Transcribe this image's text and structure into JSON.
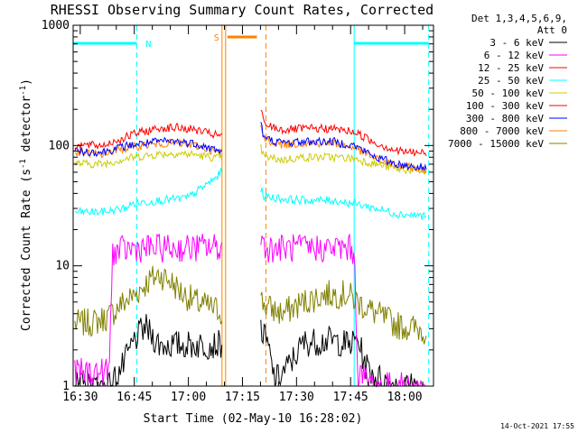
{
  "chart_data": {
    "type": "line",
    "title": "RHESSI Observing Summary Count Rates, Corrected",
    "xlabel": "Start Time (02-May-10 16:28:02)",
    "ylabel": "Corrected Count Rate (s⁻¹ detector⁻¹)",
    "ylabel_parts": {
      "main": "Corrected Count Rate (s",
      "sup1": "-1",
      "mid": " detector",
      "sup2": "-1",
      "end": ")"
    },
    "yscale": "log",
    "ylim": [
      1,
      1000
    ],
    "xlim": [
      "16:28:02",
      "18:08:00"
    ],
    "x_ticks": [
      "16:30",
      "16:45",
      "17:00",
      "17:15",
      "17:30",
      "17:45",
      "18:00"
    ],
    "y_ticks": [
      "1",
      "10",
      "100",
      "1000"
    ],
    "legend_position": "right",
    "legend_header": [
      "Det 1,3,4,5,6,9,",
      "Att 0"
    ],
    "footer_date": "14-Oct-2021 17:55",
    "annotations": {
      "night_label": "N",
      "saa_label": "S",
      "night_intervals": [
        [
          "16:28:02",
          "16:45:40"
        ],
        [
          "17:46:00",
          "18:06:40"
        ]
      ],
      "saa_interval": [
        "17:09:20",
        "17:21:30"
      ],
      "gap_interval": [
        "17:10:20",
        "17:19:50"
      ]
    },
    "series": [
      {
        "name": "3 - 6 keV",
        "color": "#000000",
        "points": [
          [
            "16:28:30",
            1
          ],
          [
            "16:38:00",
            1
          ],
          [
            "16:42:00",
            1.5
          ],
          [
            "16:45:00",
            2.4
          ],
          [
            "16:48:00",
            3.1
          ],
          [
            "16:52:00",
            2.2
          ],
          [
            "16:57:00",
            2.2
          ],
          [
            "17:01:00",
            2.2
          ],
          [
            "17:05:00",
            2.2
          ],
          [
            "17:08:00",
            2.2
          ],
          [
            "17:20:00",
            3.0
          ],
          [
            "17:22:00",
            2.2
          ],
          [
            "17:24:00",
            1.1
          ],
          [
            "17:28:00",
            1.5
          ],
          [
            "17:32:00",
            2.3
          ],
          [
            "17:40:00",
            2.4
          ],
          [
            "17:45:00",
            2.2
          ],
          [
            "17:47:00",
            2.5
          ],
          [
            "17:49:00",
            1.5
          ],
          [
            "17:52:00",
            1.2
          ],
          [
            "17:58:00",
            1
          ],
          [
            "18:04:00",
            1
          ]
        ]
      },
      {
        "name": "6 - 12 keV",
        "color": "#ff00ff",
        "points": [
          [
            "16:28:30",
            1.3
          ],
          [
            "16:34:00",
            1.3
          ],
          [
            "16:38:00",
            1.3
          ],
          [
            "16:39:00",
            13
          ],
          [
            "16:45:00",
            14
          ],
          [
            "16:52:00",
            14
          ],
          [
            "17:00:00",
            14
          ],
          [
            "17:06:00",
            14.5
          ],
          [
            "17:09:00",
            14
          ],
          [
            "17:19:50",
            17
          ],
          [
            "17:22:00",
            14
          ],
          [
            "17:30:00",
            14
          ],
          [
            "17:40:00",
            14
          ],
          [
            "17:45:00",
            14
          ],
          [
            "17:46:00",
            13
          ],
          [
            "17:47:00",
            1.3
          ],
          [
            "17:52:00",
            1
          ],
          [
            "18:06:00",
            1
          ]
        ]
      },
      {
        "name": "12 - 25 keV",
        "color": "#ff0000",
        "points": []
      },
      {
        "name": "25 - 50 keV",
        "color": "#00ffff",
        "points": [
          [
            "16:28:30",
            28
          ],
          [
            "16:36:00",
            28
          ],
          [
            "16:42:00",
            30
          ],
          [
            "16:45:00",
            33
          ],
          [
            "16:52:00",
            35
          ],
          [
            "16:57:00",
            36
          ],
          [
            "17:00:00",
            37
          ],
          [
            "17:04:00",
            45
          ],
          [
            "17:08:00",
            55
          ],
          [
            "17:09:00",
            60
          ],
          [
            "17:19:50",
            46
          ],
          [
            "17:21:00",
            38
          ],
          [
            "17:26:00",
            36
          ],
          [
            "17:32:00",
            35
          ],
          [
            "17:40:00",
            35
          ],
          [
            "17:46:00",
            33
          ],
          [
            "17:52:00",
            30
          ],
          [
            "17:58:00",
            27
          ],
          [
            "18:06:00",
            26
          ]
        ]
      },
      {
        "name": "50 - 100 keV",
        "color": "#cccc00",
        "points": [
          [
            "16:28:30",
            71
          ],
          [
            "16:36:00",
            70
          ],
          [
            "16:42:00",
            77
          ],
          [
            "16:45:00",
            80
          ],
          [
            "16:52:00",
            85
          ],
          [
            "16:57:00",
            86
          ],
          [
            "17:02:00",
            84
          ],
          [
            "17:06:00",
            80
          ],
          [
            "17:09:00",
            78
          ],
          [
            "17:19:50",
            100
          ],
          [
            "17:21:00",
            80
          ],
          [
            "17:26:00",
            76
          ],
          [
            "17:32:00",
            80
          ],
          [
            "17:40:00",
            80
          ],
          [
            "17:46:00",
            78
          ],
          [
            "17:52:00",
            70
          ],
          [
            "17:58:00",
            64
          ],
          [
            "18:06:00",
            61
          ]
        ]
      },
      {
        "name": "100 - 300 keV",
        "color": "#ff0000",
        "points": [
          [
            "16:28:30",
            101
          ],
          [
            "16:36:00",
            100
          ],
          [
            "16:42:00",
            115
          ],
          [
            "16:45:00",
            125
          ],
          [
            "16:52:00",
            140
          ],
          [
            "16:57:00",
            141
          ],
          [
            "17:02:00",
            135
          ],
          [
            "17:06:00",
            125
          ],
          [
            "17:09:00",
            120
          ],
          [
            "17:19:50",
            220
          ],
          [
            "17:21:00",
            150
          ],
          [
            "17:26:00",
            135
          ],
          [
            "17:32:00",
            138
          ],
          [
            "17:40:00",
            138
          ],
          [
            "17:46:00",
            130
          ],
          [
            "17:52:00",
            105
          ],
          [
            "17:58:00",
            90
          ],
          [
            "18:06:00",
            86
          ]
        ]
      },
      {
        "name": "300 - 800 keV",
        "color": "#0000ff",
        "points": [
          [
            "16:28:30",
            90
          ],
          [
            "16:36:00",
            88
          ],
          [
            "16:42:00",
            98
          ],
          [
            "16:45:00",
            102
          ],
          [
            "16:52:00",
            108
          ],
          [
            "16:57:00",
            108
          ],
          [
            "17:02:00",
            104
          ],
          [
            "17:06:00",
            95
          ],
          [
            "17:09:00",
            90
          ],
          [
            "17:19:50",
            165
          ],
          [
            "17:21:00",
            115
          ],
          [
            "17:26:00",
            105
          ],
          [
            "17:32:00",
            108
          ],
          [
            "17:40:00",
            108
          ],
          [
            "17:46:00",
            100
          ],
          [
            "17:52:00",
            80
          ],
          [
            "17:58:00",
            70
          ],
          [
            "18:06:00",
            65
          ]
        ]
      },
      {
        "name": "800 - 7000 keV",
        "color": "#ff8000",
        "points": [
          [
            "16:28:30",
            87
          ],
          [
            "16:36:00",
            85
          ],
          [
            "16:42:00",
            94
          ],
          [
            "16:45:00",
            98
          ],
          [
            "16:52:00",
            104
          ],
          [
            "16:57:00",
            104
          ],
          [
            "17:02:00",
            100
          ],
          [
            "17:06:00",
            92
          ],
          [
            "17:09:00",
            87
          ],
          [
            "17:19:50",
            160
          ],
          [
            "17:21:00",
            112
          ],
          [
            "17:26:00",
            102
          ],
          [
            "17:32:00",
            105
          ],
          [
            "17:40:00",
            105
          ],
          [
            "17:46:00",
            97
          ],
          [
            "17:52:00",
            77
          ],
          [
            "17:58:00",
            68
          ],
          [
            "18:06:00",
            63
          ]
        ]
      },
      {
        "name": "7000 - 15000 keV",
        "color": "#808000",
        "points": [
          [
            "16:28:30",
            3.3
          ],
          [
            "16:34:00",
            3.4
          ],
          [
            "16:38:00",
            3.8
          ],
          [
            "16:41:00",
            4.7
          ],
          [
            "16:45:00",
            5.7
          ],
          [
            "16:49:00",
            7.5
          ],
          [
            "16:52:00",
            8.5
          ],
          [
            "16:55:00",
            7.5
          ],
          [
            "16:58:00",
            6.0
          ],
          [
            "17:02:00",
            5.0
          ],
          [
            "17:06:00",
            4.5
          ],
          [
            "17:09:00",
            4.2
          ],
          [
            "17:19:50",
            5.3
          ],
          [
            "17:22:00",
            4.5
          ],
          [
            "17:26:00",
            4.0
          ],
          [
            "17:32:00",
            5.0
          ],
          [
            "17:38:00",
            5.8
          ],
          [
            "17:44:00",
            5.8
          ],
          [
            "17:47:00",
            5.0
          ],
          [
            "17:52:00",
            4.0
          ],
          [
            "17:58:00",
            3.2
          ],
          [
            "18:06:00",
            2.9
          ]
        ]
      }
    ]
  }
}
